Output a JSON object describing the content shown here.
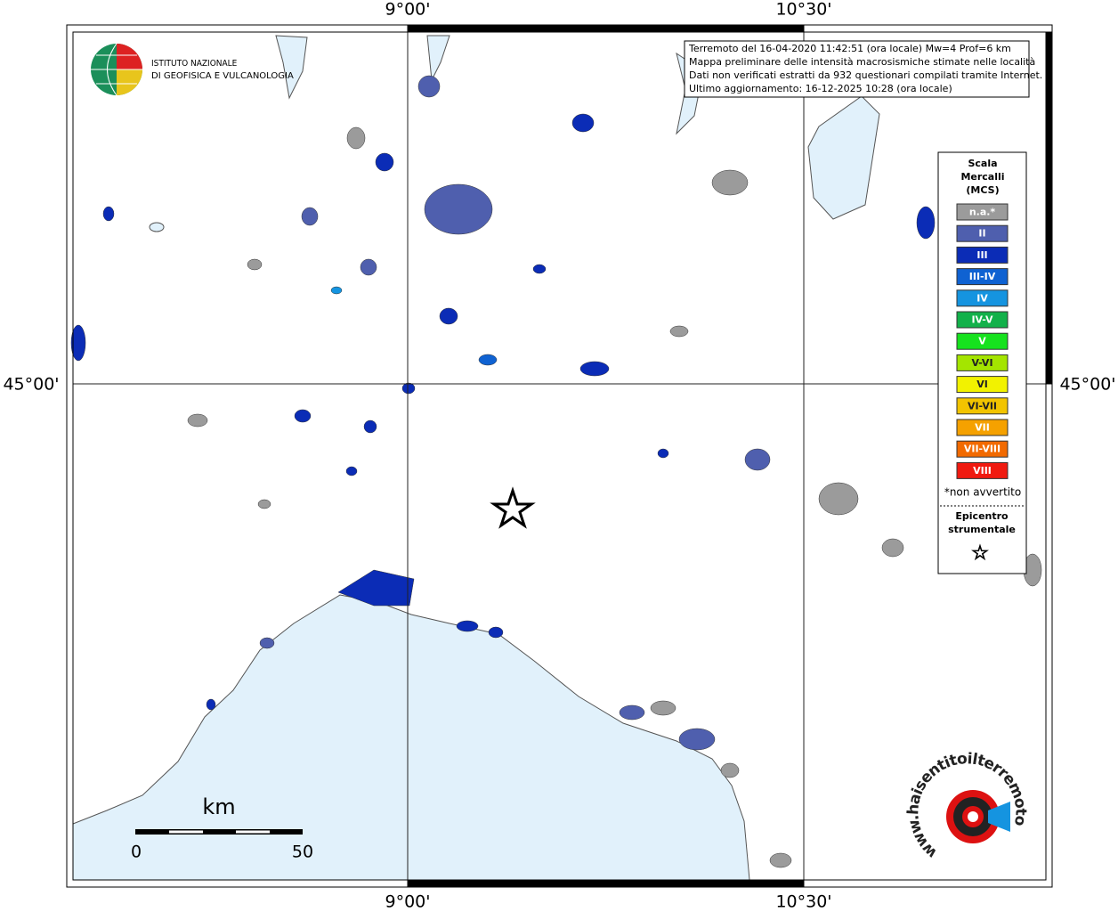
{
  "header": {
    "institute": [
      "ISTITUTO NAZIONALE",
      "DI GEOFISICA E VULCANOLOGIA"
    ]
  },
  "info": [
    "Terremoto del 16-04-2020 11:42:51 (ora locale) Mw=4 Prof=6 km",
    "Mappa preliminare delle intensità macrosismiche stimate nelle località",
    "Dati non verificati estratti da 932 questionari compilati tramite Internet.",
    "Ultimo aggiornamento: 16-12-2025 10:28 (ora locale)"
  ],
  "graticule": {
    "lon": [
      "9°00'",
      "10°30'"
    ],
    "lat": [
      "45°00'"
    ]
  },
  "legend": {
    "title": [
      "Scala",
      "Mercalli",
      "(MCS)"
    ],
    "items": [
      {
        "label": "n.a.*",
        "color": "#9b9b9b"
      },
      {
        "label": "II",
        "color": "#4f5fae"
      },
      {
        "label": "III",
        "color": "#0b2cb6"
      },
      {
        "label": "III-IV",
        "color": "#0f62d2"
      },
      {
        "label": "IV",
        "color": "#1594e0"
      },
      {
        "label": "IV-V",
        "color": "#12b14a"
      },
      {
        "label": "V",
        "color": "#16e21e"
      },
      {
        "label": "V-VI",
        "color": "#a4e500"
      },
      {
        "label": "VI",
        "color": "#f2f200"
      },
      {
        "label": "VI-VII",
        "color": "#f2c400"
      },
      {
        "label": "VII",
        "color": "#f5a100"
      },
      {
        "label": "VII-VIII",
        "color": "#f26a00"
      },
      {
        "label": "VIII",
        "color": "#f01a10"
      }
    ],
    "note": "*non avvertito",
    "epicenter": [
      "Epicentro",
      "strumentale"
    ]
  },
  "scale_bar": {
    "unit": "km",
    "labels": [
      "0",
      "50"
    ]
  },
  "site": "www.haisentitoilterremoto.it"
}
